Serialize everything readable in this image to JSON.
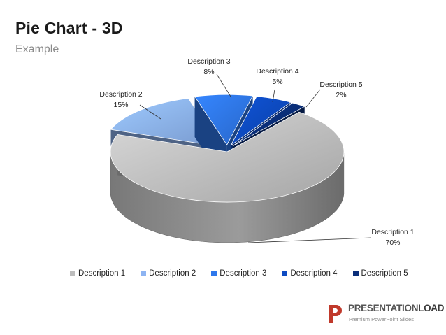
{
  "header": {
    "title": "Pie Chart - 3D",
    "subtitle": "Example"
  },
  "chart_data": {
    "type": "pie",
    "style": "3d exploded",
    "categories": [
      "Description 1",
      "Description 2",
      "Description 3",
      "Description 4",
      "Description 5"
    ],
    "values": [
      70,
      15,
      8,
      5,
      2
    ],
    "data_labels": [
      "70%",
      "15%",
      "8%",
      "5%",
      "2%"
    ],
    "colors": [
      "#c2c2c2",
      "#8db4f2",
      "#2f78ec",
      "#0d4bc2",
      "#0a2f7a"
    ],
    "legend_position": "bottom"
  },
  "legend": {
    "items": [
      {
        "label": "Description 1",
        "color": "#bdbdbd"
      },
      {
        "label": "Description 2",
        "color": "#8db4f2"
      },
      {
        "label": "Description 3",
        "color": "#2f78ec"
      },
      {
        "label": "Description 4",
        "color": "#0d4bc2"
      },
      {
        "label": "Description 5",
        "color": "#0a2f7a"
      }
    ]
  },
  "logo": {
    "name_light": "PRESENTATION",
    "name_bold": "LOAD",
    "tagline": "Premium PowerPoint Slides",
    "color": "#c0392b"
  }
}
